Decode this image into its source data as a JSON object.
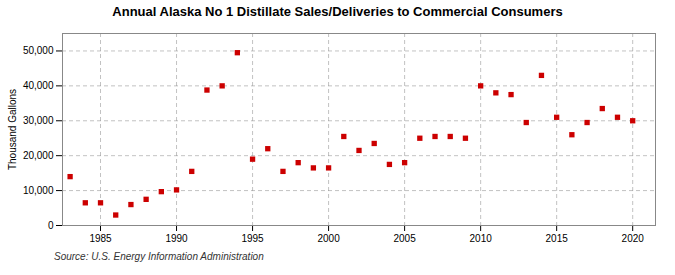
{
  "chart_data": {
    "type": "scatter",
    "title": "Annual Alaska No 1 Distillate Sales/Deliveries to Commercial Consumers",
    "y_label": "Thousand Gallons",
    "caption": "Source: U.S. Energy Information Administration",
    "x": [
      1983,
      1984,
      1985,
      1986,
      1987,
      1988,
      1989,
      1990,
      1991,
      1992,
      1993,
      1994,
      1995,
      1996,
      1997,
      1998,
      1999,
      2000,
      2001,
      2002,
      2003,
      2004,
      2005,
      2006,
      2007,
      2008,
      2009,
      2010,
      2011,
      2012,
      2013,
      2014,
      2015,
      2016,
      2017,
      2018,
      2019,
      2020
    ],
    "values": [
      14000,
      6500,
      6500,
      3000,
      6000,
      7500,
      9700,
      10200,
      15500,
      38800,
      40000,
      49500,
      19000,
      22000,
      15500,
      18000,
      16500,
      16500,
      25500,
      21500,
      23500,
      17500,
      18000,
      25000,
      25500,
      25500,
      25000,
      40000,
      38000,
      37500,
      29500,
      43000,
      31000,
      26000,
      29500,
      33500,
      31000,
      30000
    ],
    "color": "#cc0000",
    "marker": "square",
    "xlim": [
      1982.5,
      2021.5
    ],
    "ylim": [
      0,
      55000
    ],
    "xticks": [
      1985,
      1990,
      1995,
      2000,
      2005,
      2010,
      2015,
      2020
    ],
    "yticks": [
      0,
      {
        "value": 10000,
        "label": "10,000"
      },
      {
        "value": 20000,
        "label": "20,000"
      },
      {
        "value": 30000,
        "label": "30,000"
      },
      {
        "value": 40000,
        "label": "40,000"
      },
      {
        "value": 50000,
        "label": "50,000"
      }
    ],
    "grid": true
  }
}
